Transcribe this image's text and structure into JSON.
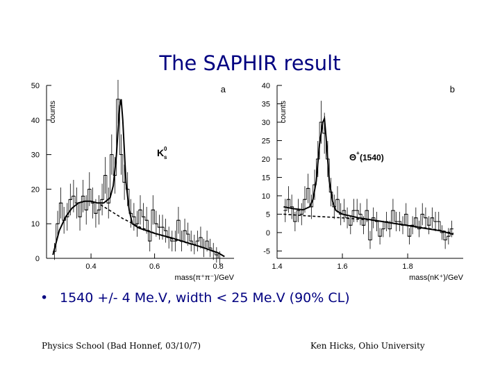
{
  "slide": {
    "title": "The SAPHIR result",
    "bullet": "1540 +/- 4 Me.V, width < 25 Me.V  (90% CL)",
    "bullet_marker": "•",
    "footer_left": "Physics School (Bad Honnef, 03/10/7)",
    "footer_right": "Ken Hicks, Ohio University"
  },
  "chart_data": [
    {
      "type": "histogram",
      "panel_label": "a",
      "ylabel": "counts",
      "xlabel": "mass(π⁺π⁻)/GeV",
      "peak_label": "K",
      "peak_label_sup": "0",
      "peak_label_sub": "s",
      "xlim": [
        0.26,
        0.85
      ],
      "ylim": [
        0,
        50
      ],
      "xticks": [
        0.4,
        0.6,
        0.8
      ],
      "xtick_labels": [
        "0.4",
        "0.6",
        "0.8"
      ],
      "yticks": [
        0,
        10,
        20,
        30,
        40,
        50
      ],
      "ytick_labels": [
        "0",
        "10",
        "20",
        "30",
        "40",
        "50"
      ],
      "bin_width": 0.01,
      "bin_centers": [
        0.285,
        0.295,
        0.305,
        0.315,
        0.325,
        0.335,
        0.345,
        0.355,
        0.365,
        0.375,
        0.385,
        0.395,
        0.405,
        0.415,
        0.425,
        0.435,
        0.445,
        0.455,
        0.465,
        0.475,
        0.485,
        0.495,
        0.505,
        0.515,
        0.525,
        0.535,
        0.545,
        0.555,
        0.565,
        0.575,
        0.585,
        0.595,
        0.605,
        0.615,
        0.625,
        0.635,
        0.645,
        0.655,
        0.665,
        0.675,
        0.685,
        0.695,
        0.705,
        0.715,
        0.725,
        0.735,
        0.745,
        0.755,
        0.765,
        0.775,
        0.785,
        0.795,
        0.805
      ],
      "counts": [
        2,
        10,
        16,
        11,
        12,
        17,
        18,
        16,
        12,
        18,
        14,
        20,
        16,
        13,
        14,
        17,
        24,
        16,
        30,
        24,
        46,
        30,
        22,
        20,
        13,
        12,
        10,
        14,
        12,
        11,
        5,
        14,
        10,
        9,
        9,
        8,
        6,
        5,
        5,
        11,
        5,
        8,
        7,
        5,
        4,
        5,
        6,
        3,
        5,
        3,
        2,
        1,
        0
      ],
      "fit_total": {
        "x": [
          0.28,
          0.3,
          0.32,
          0.34,
          0.36,
          0.38,
          0.4,
          0.42,
          0.44,
          0.46,
          0.47,
          0.48,
          0.49,
          0.495,
          0.5,
          0.51,
          0.52,
          0.53,
          0.55,
          0.6,
          0.65,
          0.7,
          0.75,
          0.8,
          0.82
        ],
        "y": [
          1,
          8,
          12,
          14.5,
          16,
          16.5,
          16.5,
          16,
          16,
          17.5,
          21,
          30,
          44,
          46,
          40,
          22,
          14,
          10,
          8.8,
          7.2,
          6,
          4.6,
          3.2,
          1.6,
          0.5
        ]
      },
      "fit_background": {
        "x": [
          0.43,
          0.46,
          0.5,
          0.55,
          0.6,
          0.65,
          0.7,
          0.75,
          0.8,
          0.82
        ],
        "y": [
          15.5,
          13.8,
          11.5,
          9.2,
          7.3,
          5.8,
          4.5,
          3.2,
          1.6,
          0.5
        ]
      }
    },
    {
      "type": "histogram",
      "panel_label": "b",
      "ylabel": "counts",
      "xlabel": "mass(nK⁺)/GeV",
      "peak_label": "Θ",
      "peak_label_sup": "+",
      "peak_label_rest": " (1540)",
      "xlim": [
        1.4,
        1.97
      ],
      "ylim": [
        -7,
        40
      ],
      "xticks": [
        1.4,
        1.6,
        1.8
      ],
      "xtick_labels": [
        "1.4",
        "1.6",
        "1.8"
      ],
      "yticks": [
        -5,
        0,
        5,
        10,
        15,
        20,
        25,
        30,
        35,
        40
      ],
      "ytick_labels": [
        "-5",
        "0",
        "5",
        "10",
        "15",
        "20",
        "25",
        "30",
        "35",
        "40"
      ],
      "bin_width": 0.01,
      "bin_centers": [
        1.425,
        1.435,
        1.445,
        1.455,
        1.465,
        1.475,
        1.485,
        1.495,
        1.505,
        1.515,
        1.525,
        1.535,
        1.545,
        1.555,
        1.565,
        1.575,
        1.585,
        1.595,
        1.605,
        1.615,
        1.625,
        1.635,
        1.645,
        1.655,
        1.665,
        1.675,
        1.685,
        1.695,
        1.705,
        1.715,
        1.725,
        1.735,
        1.745,
        1.755,
        1.765,
        1.775,
        1.785,
        1.795,
        1.805,
        1.815,
        1.825,
        1.835,
        1.845,
        1.855,
        1.865,
        1.875,
        1.885,
        1.895,
        1.905,
        1.915,
        1.925,
        1.935
      ],
      "counts": [
        6,
        9,
        7,
        3,
        6,
        5,
        9,
        12,
        7,
        13,
        20,
        30,
        27,
        20,
        11,
        7,
        9,
        5,
        6,
        4,
        2,
        6,
        6,
        5,
        2,
        6,
        -2,
        4,
        3,
        -1,
        1,
        3,
        1,
        6,
        3,
        3,
        2,
        5,
        -1,
        2,
        4,
        1,
        5,
        4,
        2,
        4,
        3,
        3,
        0,
        -2,
        -1,
        1
      ],
      "fit_total": {
        "x": [
          1.42,
          1.45,
          1.48,
          1.5,
          1.51,
          1.52,
          1.53,
          1.54,
          1.545,
          1.55,
          1.56,
          1.57,
          1.58,
          1.6,
          1.65,
          1.7,
          1.75,
          1.8,
          1.85,
          1.9,
          1.94
        ],
        "y": [
          7,
          6.5,
          6.2,
          7,
          9,
          14,
          24,
          30,
          31,
          26,
          14,
          8.5,
          6,
          5,
          4,
          3.3,
          2.6,
          1.9,
          1.2,
          0.5,
          -0.5
        ]
      },
      "fit_background": {
        "x": [
          1.42,
          1.5,
          1.6,
          1.7,
          1.8,
          1.9,
          1.94
        ],
        "y": [
          5,
          4.5,
          4,
          3.3,
          2,
          0.6,
          -0.2
        ]
      }
    }
  ]
}
